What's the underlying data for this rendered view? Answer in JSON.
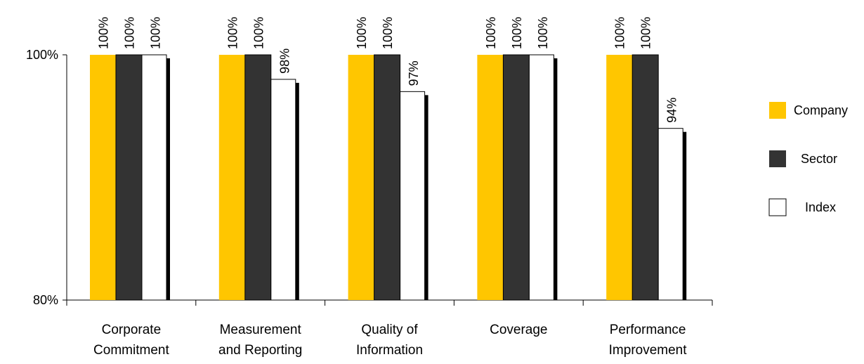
{
  "chart_data": {
    "type": "bar",
    "categories": [
      [
        "Corporate",
        "Commitment"
      ],
      [
        "Measurement",
        "and Reporting"
      ],
      [
        "Quality of",
        "Information"
      ],
      [
        "Coverage"
      ],
      [
        "Performance",
        "Improvement"
      ]
    ],
    "series": [
      {
        "name": "Company",
        "values": [
          100,
          100,
          100,
          100,
          100
        ],
        "labels": [
          "",
          "",
          "",
          "",
          ""
        ],
        "color": "#FFC600"
      },
      {
        "name": "Sector",
        "values": [
          100,
          100,
          100,
          100,
          100
        ],
        "labels": [
          "100%",
          "100%",
          "100%",
          "100%",
          "100%"
        ],
        "color": "#333333"
      },
      {
        "name": "Index",
        "values": [
          100,
          98,
          97,
          100,
          94
        ],
        "labels": [
          "100%",
          "98%",
          "97%",
          "100%",
          "94%"
        ],
        "color": "#FFFFFF"
      }
    ],
    "point_labels_company": [
      "100%",
      "100%",
      "100%",
      "100%",
      "100%"
    ],
    "ylim": [
      80,
      100
    ],
    "yticks": [
      "80%",
      "100%"
    ],
    "xlabel": "",
    "ylabel": "",
    "title": "",
    "grid": false,
    "legend": {
      "position": "right",
      "entries": [
        "Company",
        "Sector",
        "Index"
      ]
    },
    "bar_edge_color": "#000000"
  }
}
